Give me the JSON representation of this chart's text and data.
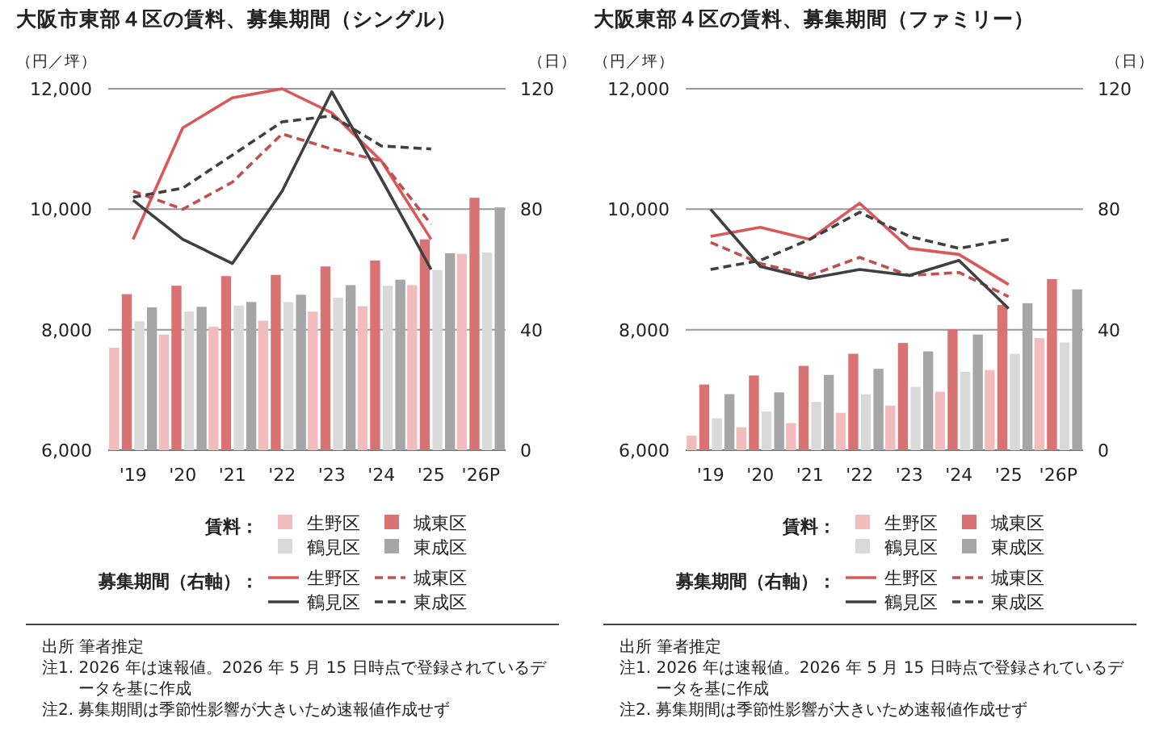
{
  "chart_data": [
    {
      "type": "bar",
      "title": "大阪市東部４区の賃料、募集期間（シングル）",
      "ylabel": "（円／坪）",
      "y2label": "（日）",
      "categories": [
        "'19",
        "'20",
        "'21",
        "'22",
        "'23",
        "'24",
        "'25",
        "'26P"
      ],
      "series": [
        {
          "name": "生野区",
          "color": "#f2bcbc",
          "values": [
            7700,
            7920,
            8050,
            8150,
            8300,
            8390,
            8740,
            9260
          ]
        },
        {
          "name": "城東区",
          "color": "#d97373",
          "values": [
            8590,
            8730,
            8890,
            8910,
            9050,
            9150,
            9500,
            10190
          ]
        },
        {
          "name": "鶴見区",
          "color": "#d9d9d9",
          "values": [
            8140,
            8300,
            8400,
            8460,
            8530,
            8730,
            8990,
            9280
          ]
        },
        {
          "name": "東成区",
          "color": "#a6a6a6",
          "values": [
            8370,
            8380,
            8460,
            8580,
            8740,
            8830,
            9270,
            10030
          ]
        },
        {
          "name": "生野区",
          "type": "line",
          "axis": "y2",
          "line_style": "solid",
          "color": "#d9595b",
          "values": [
            70,
            107,
            117,
            120,
            112,
            96,
            70,
            null
          ]
        },
        {
          "name": "城東区",
          "type": "line",
          "axis": "y2",
          "line_style": "dashed",
          "color": "#c0504d",
          "values": [
            86,
            80,
            89,
            105,
            100,
            96,
            75,
            null
          ]
        },
        {
          "name": "鶴見区",
          "type": "line",
          "axis": "y2",
          "line_style": "solid",
          "color": "#404040",
          "values": [
            83,
            70,
            62,
            86,
            119,
            90,
            60,
            null
          ]
        },
        {
          "name": "東成区",
          "type": "line",
          "axis": "y2",
          "line_style": "dashed",
          "color": "#404040",
          "values": [
            84,
            87,
            98,
            109,
            111,
            101,
            100,
            null
          ]
        }
      ],
      "ylim": [
        6000,
        12000
      ],
      "yticks": [
        {
          "value": 6000,
          "label": "6,000"
        },
        {
          "value": 8000,
          "label": "8,000"
        },
        {
          "value": 10000,
          "label": "10,000"
        },
        {
          "value": 12000,
          "label": "12,000"
        }
      ],
      "y2lim": [
        0,
        120
      ],
      "y2ticks": [
        0,
        40,
        80,
        120
      ],
      "grid": "y",
      "legend": "bottom",
      "marker": "none",
      "annotations": [
        "賃料：",
        "募集期間（右軸）：",
        "出所 筆者推定",
        "注1. 2026 年は速報値。2026 年 5 月 15 日時点で登録されているデータを基に作成",
        "注2. 募集期間は季節性影響が大きいため速報値作成せず"
      ]
    },
    {
      "type": "bar",
      "title": "大阪東部４区の賃料、募集期間（ファミリー）",
      "ylabel": "（円／坪）",
      "y2label": "（日）",
      "categories": [
        "'19",
        "'20",
        "'21",
        "'22",
        "'23",
        "'24",
        "'25",
        "'26P"
      ],
      "series": [
        {
          "name": "生野区",
          "color": "#f2bcbc",
          "values": [
            6240,
            6380,
            6450,
            6620,
            6740,
            6970,
            7330,
            7860
          ]
        },
        {
          "name": "城東区",
          "color": "#d97373",
          "values": [
            7090,
            7240,
            7400,
            7600,
            7780,
            8010,
            8410,
            8840
          ]
        },
        {
          "name": "鶴見区",
          "color": "#d9d9d9",
          "values": [
            6530,
            6640,
            6800,
            6930,
            7050,
            7300,
            7600,
            7790
          ]
        },
        {
          "name": "東成区",
          "color": "#a6a6a6",
          "values": [
            6930,
            6960,
            7250,
            7350,
            7640,
            7920,
            8440,
            8670
          ]
        },
        {
          "name": "生野区",
          "type": "line",
          "axis": "y2",
          "line_style": "solid",
          "color": "#d9595b",
          "values": [
            71,
            74,
            70,
            82,
            67,
            65,
            55,
            null
          ]
        },
        {
          "name": "城東区",
          "type": "line",
          "axis": "y2",
          "line_style": "dashed",
          "color": "#c0504d",
          "values": [
            69,
            62,
            58,
            64,
            58,
            59,
            51,
            null
          ]
        },
        {
          "name": "鶴見区",
          "type": "line",
          "axis": "y2",
          "line_style": "solid",
          "color": "#404040",
          "values": [
            80,
            61,
            57,
            60,
            58,
            63,
            47,
            null
          ]
        },
        {
          "name": "東成区",
          "type": "line",
          "axis": "y2",
          "line_style": "dashed",
          "color": "#404040",
          "values": [
            60,
            63,
            70,
            79,
            71,
            67,
            70,
            null
          ]
        }
      ],
      "ylim": [
        6000,
        12000
      ],
      "yticks": [
        {
          "value": 6000,
          "label": "6,000"
        },
        {
          "value": 8000,
          "label": "8,000"
        },
        {
          "value": 10000,
          "label": "10,000"
        },
        {
          "value": 12000,
          "label": "12,000"
        }
      ],
      "y2lim": [
        0,
        120
      ],
      "y2ticks": [
        0,
        40,
        80,
        120
      ],
      "grid": "y",
      "legend": "bottom",
      "marker": "none",
      "annotations": [
        "賃料：",
        "募集期間（右軸）：",
        "出所 筆者推定",
        "注1. 2026 年は速報値。2026 年 5 月 15 日時点で登録されているデータを基に作成",
        "注2. 募集期間は季節性影響が大きいため速報値作成せず"
      ]
    }
  ]
}
